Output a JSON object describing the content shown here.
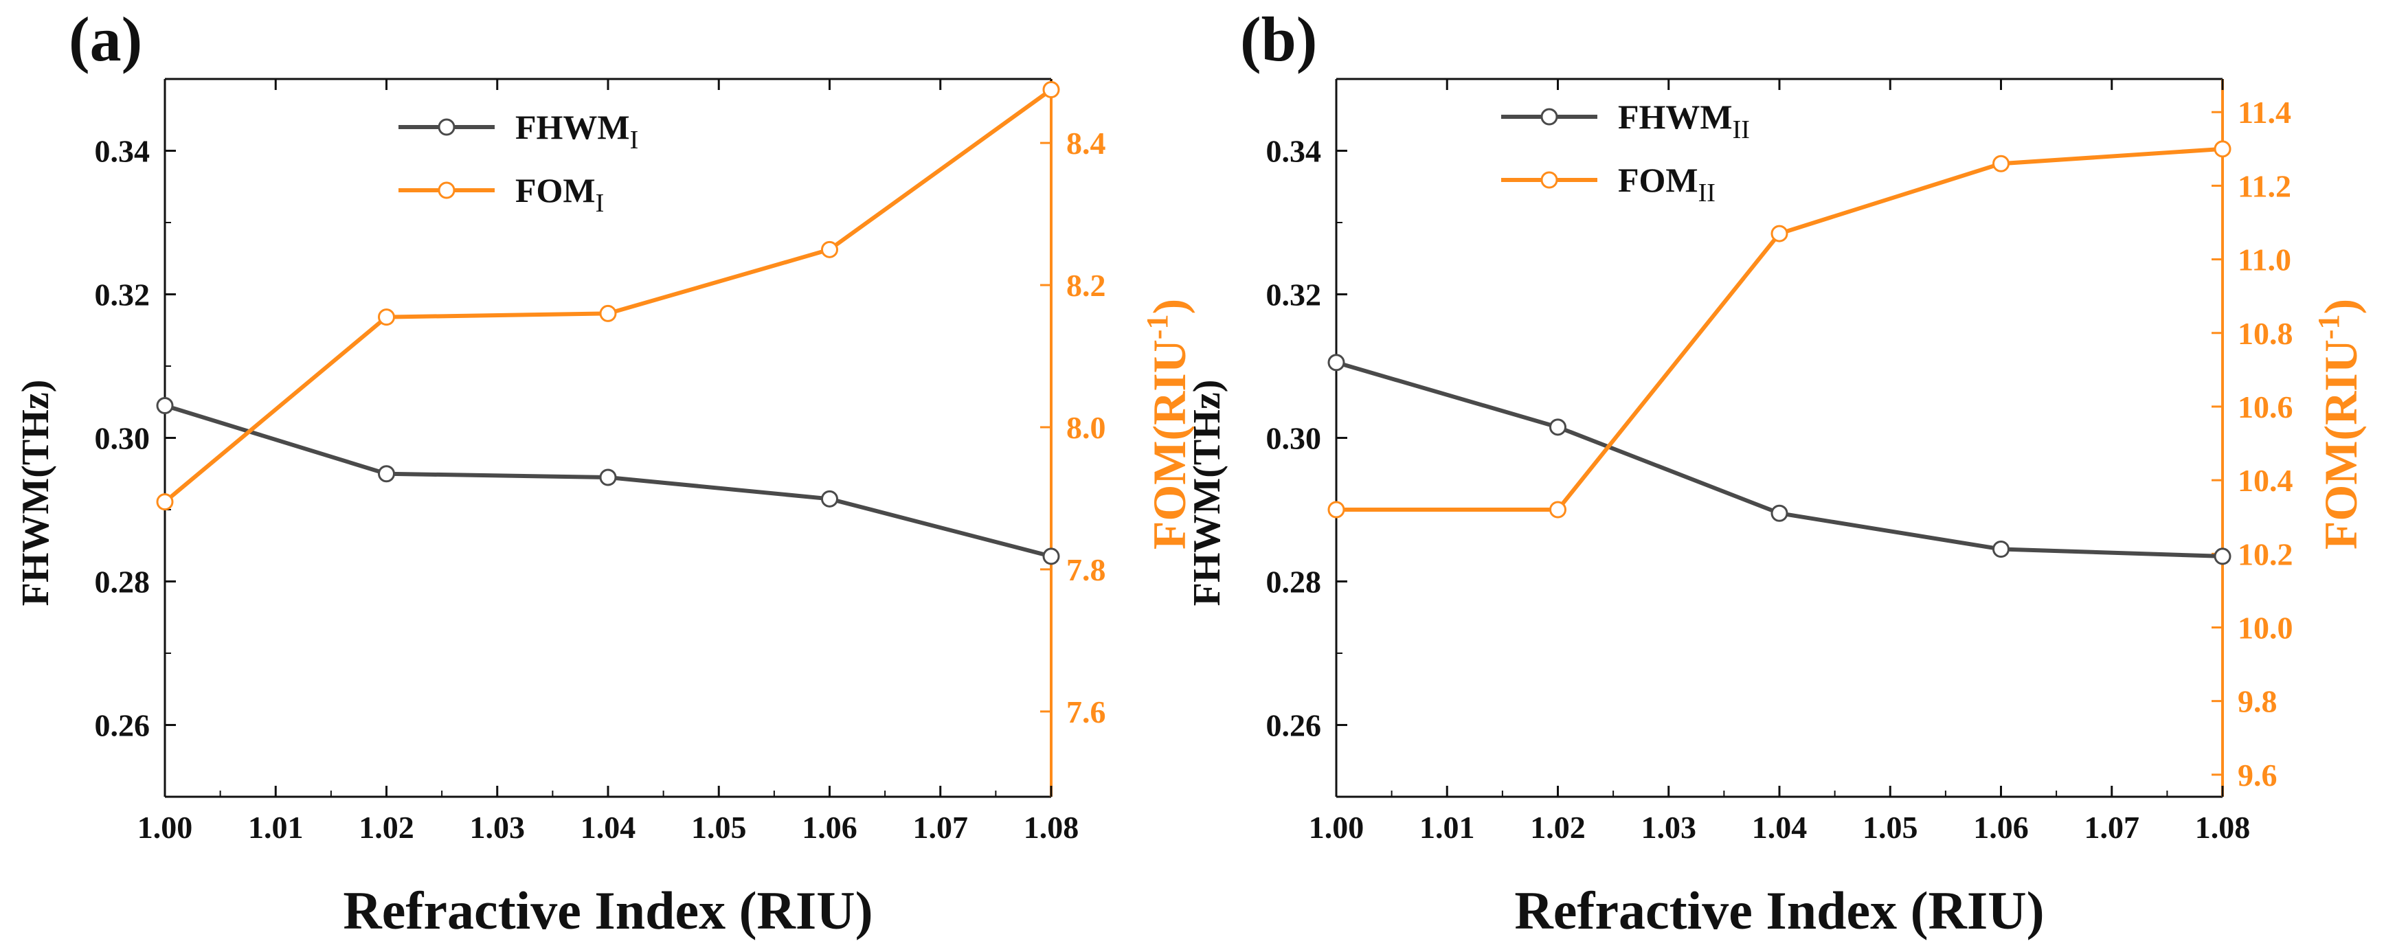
{
  "chart_data": [
    {
      "panel_label": "(a)",
      "type": "line",
      "xlabel": "Refractive Index (RIU)",
      "ylabel_left": "FHWM(THz)",
      "ylabel_right": "FOM(RIU",
      "ylabel_right_sup": "-1",
      "ylabel_right_close": ")",
      "x": [
        1.0,
        1.02,
        1.04,
        1.06,
        1.08
      ],
      "xlim": [
        1.0,
        1.08
      ],
      "xticks": [
        "1.00",
        "1.01",
        "1.02",
        "1.03",
        "1.04",
        "1.05",
        "1.06",
        "1.07",
        "1.08"
      ],
      "ylim_left": [
        0.25,
        0.35
      ],
      "yticks_left": [
        "0.26",
        "0.28",
        "0.30",
        "0.32",
        "0.34"
      ],
      "ylim_right": [
        7.48,
        8.49
      ],
      "yticks_right": [
        "7.6",
        "7.8",
        "8.0",
        "8.2",
        "8.4"
      ],
      "legend_position": "top-center",
      "series": [
        {
          "name": "FHWM",
          "sub": "I",
          "axis": "left",
          "color": "#4a4a4a",
          "values": [
            0.3045,
            0.295,
            0.2945,
            0.2915,
            0.2835
          ]
        },
        {
          "name": "FOM",
          "sub": "I",
          "axis": "right",
          "color": "#ff8c1a",
          "values": [
            7.895,
            8.155,
            8.16,
            8.25,
            8.475
          ]
        }
      ]
    },
    {
      "panel_label": "(b)",
      "type": "line",
      "xlabel": "Refractive Index (RIU)",
      "ylabel_left": "FHWM(THz)",
      "ylabel_right": "FOM(RIU",
      "ylabel_right_sup": "-1",
      "ylabel_right_close": ")",
      "x": [
        1.0,
        1.02,
        1.04,
        1.06,
        1.08
      ],
      "xlim": [
        1.0,
        1.08
      ],
      "xticks": [
        "1.00",
        "1.01",
        "1.02",
        "1.03",
        "1.04",
        "1.05",
        "1.06",
        "1.07",
        "1.08"
      ],
      "ylim_left": [
        0.25,
        0.35
      ],
      "yticks_left": [
        "0.26",
        "0.28",
        "0.30",
        "0.32",
        "0.34"
      ],
      "ylim_right": [
        9.54,
        11.49
      ],
      "yticks_right": [
        "9.6",
        "9.8",
        "10.0",
        "10.2",
        "10.4",
        "10.6",
        "10.8",
        "11.0",
        "11.2",
        "11.4"
      ],
      "legend_position": "top-center",
      "series": [
        {
          "name": "FHWM",
          "sub": "II",
          "axis": "left",
          "color": "#4a4a4a",
          "values": [
            0.3105,
            0.3015,
            0.2895,
            0.2845,
            0.2835
          ]
        },
        {
          "name": "FOM",
          "sub": "II",
          "axis": "right",
          "color": "#ff8c1a",
          "values": [
            10.32,
            10.32,
            11.07,
            11.26,
            11.3
          ]
        }
      ]
    }
  ]
}
